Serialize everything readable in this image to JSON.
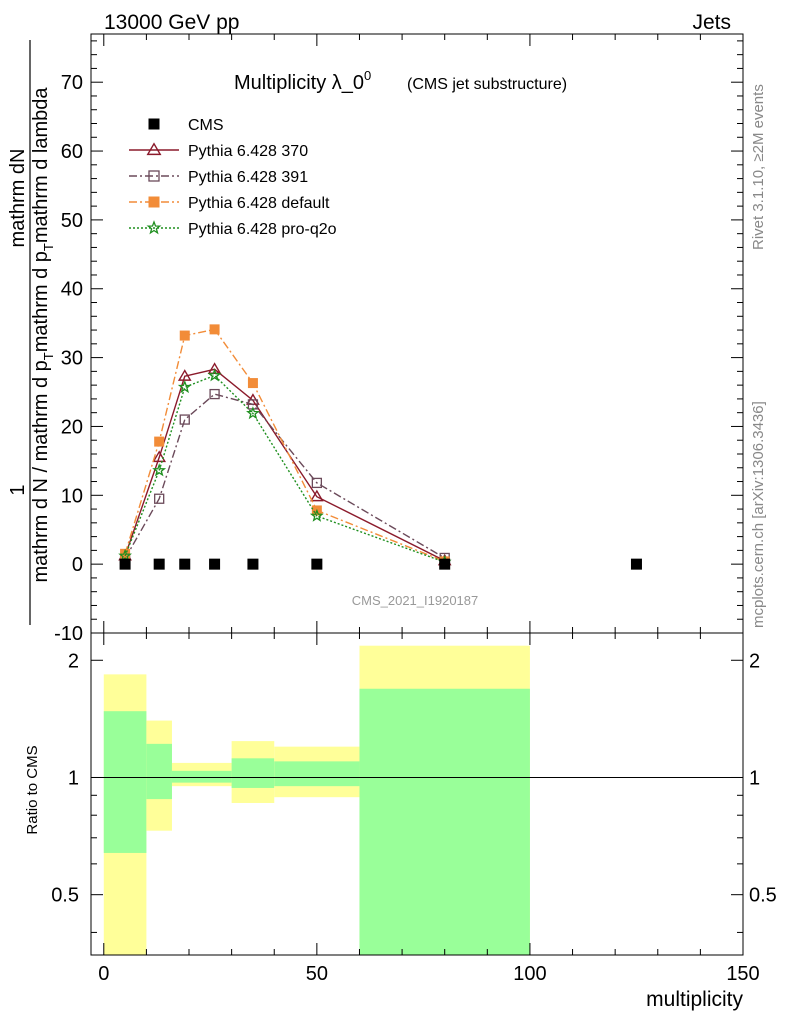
{
  "header": {
    "energy_label": "13000 GeV pp",
    "category_label": "Jets"
  },
  "side": {
    "rivet_label": "Rivet 3.1.10, ≥2M events",
    "mcplots_label": "mcplots.cern.ch [arXiv:1306.3436]"
  },
  "watermark": "CMS_2021_I1920187",
  "chart_data": [
    {
      "type": "line",
      "title": "Multiplicity λ_0",
      "title_sup": "0",
      "subtitle": "(CMS jet substructure)",
      "ylabel_numerator": "mathrm dN",
      "ylabel_one": "1",
      "ylabel_denominator": "mathrm d N / mathrm d p",
      "ylabel_denominator_2": "mathrm d p",
      "ylabel_denominator_3": "mathrm d lambda",
      "ylabel_denominator_sub": "T",
      "ylabel_denominator_mid": "mathrm d p",
      "ylabel_denominator_mid_sub": "T",
      "ylabel_denominator_tail": "mathrm d lambda",
      "xlim": [
        -3,
        150
      ],
      "ylim": [
        -10,
        77
      ],
      "yticks": [
        -10,
        0,
        10,
        20,
        30,
        40,
        50,
        60,
        70
      ],
      "legend_position": "top-left",
      "series": [
        {
          "name": "CMS",
          "color": "#000000",
          "marker": "square-filled",
          "x": [
            5,
            13,
            19,
            26,
            35,
            50,
            80,
            125
          ],
          "values": [
            0,
            0,
            0,
            0,
            0,
            0,
            0,
            0
          ]
        },
        {
          "name": "Pythia 6.428 370",
          "color": "#8b1a2b",
          "marker": "triangle-open",
          "x": [
            5,
            13,
            19,
            26,
            35,
            50,
            80
          ],
          "values": [
            1.2,
            15.5,
            27.3,
            28.3,
            23.8,
            9.8,
            0.5
          ]
        },
        {
          "name": "Pythia 6.428 391",
          "color": "#6b4a5a",
          "marker": "square-open",
          "x": [
            5,
            13,
            19,
            26,
            35,
            50,
            80
          ],
          "values": [
            0.8,
            9.5,
            21.0,
            24.7,
            23.2,
            11.8,
            0.9
          ]
        },
        {
          "name": "Pythia 6.428 default",
          "color": "#f28c38",
          "marker": "square-filled",
          "x": [
            5,
            13,
            19,
            26,
            35,
            50,
            80
          ],
          "values": [
            1.5,
            17.8,
            33.2,
            34.1,
            26.3,
            7.8,
            0.4
          ]
        },
        {
          "name": "Pythia 6.428 pro-q2o",
          "color": "#1f8f1f",
          "marker": "star",
          "x": [
            5,
            13,
            19,
            26,
            35,
            50,
            80
          ],
          "values": [
            1.2,
            13.6,
            25.7,
            27.4,
            21.9,
            7.0,
            0.3
          ]
        }
      ]
    },
    {
      "type": "area",
      "ylabel": "Ratio to CMS",
      "xlabel": "multiplicity",
      "xlim": [
        -3,
        150
      ],
      "ylim": [
        0.35,
        2.35
      ],
      "yticks": [
        0.5,
        1,
        2
      ],
      "ytick_labels": [
        "0.5",
        "1",
        "2"
      ],
      "xticks": [
        0,
        50,
        100,
        150
      ],
      "xtick_labels": [
        "0",
        "50",
        "100",
        "150"
      ],
      "bands": [
        {
          "x0": 0,
          "x1": 10,
          "inner_lo": 0.64,
          "inner_hi": 1.48,
          "outer_lo": 0.35,
          "outer_hi": 1.84
        },
        {
          "x0": 10,
          "x1": 16,
          "inner_lo": 0.88,
          "inner_hi": 1.22,
          "outer_lo": 0.73,
          "outer_hi": 1.4
        },
        {
          "x0": 16,
          "x1": 30,
          "inner_lo": 0.97,
          "inner_hi": 1.04,
          "outer_lo": 0.95,
          "outer_hi": 1.09
        },
        {
          "x0": 30,
          "x1": 40,
          "inner_lo": 0.94,
          "inner_hi": 1.12,
          "outer_lo": 0.86,
          "outer_hi": 1.24
        },
        {
          "x0": 40,
          "x1": 60,
          "inner_lo": 0.95,
          "inner_hi": 1.1,
          "outer_lo": 0.89,
          "outer_hi": 1.2
        },
        {
          "x0": 60,
          "x1": 100,
          "inner_lo": 0.35,
          "inner_hi": 1.69,
          "outer_lo": 0.35,
          "outer_hi": 2.18
        }
      ],
      "inner_color": "#99ff99",
      "outer_color": "#ffff99",
      "reference": 1
    }
  ]
}
